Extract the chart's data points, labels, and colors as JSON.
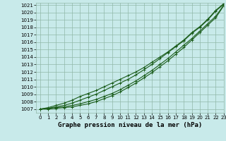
{
  "title": "Graphe pression niveau de la mer (hPa)",
  "xlim": [
    -0.5,
    23
  ],
  "ylim": [
    1006.5,
    1021.3
  ],
  "yticks": [
    1007,
    1008,
    1009,
    1010,
    1011,
    1012,
    1013,
    1014,
    1015,
    1016,
    1017,
    1018,
    1019,
    1020,
    1021
  ],
  "xticks": [
    0,
    1,
    2,
    3,
    4,
    5,
    6,
    7,
    8,
    9,
    10,
    11,
    12,
    13,
    14,
    15,
    16,
    17,
    18,
    19,
    20,
    21,
    22,
    23
  ],
  "background_color": "#c8eaea",
  "grid_color": "#90b8a8",
  "line_color": "#1a5c1a",
  "lines": [
    [
      1007.0,
      1007.1,
      1007.2,
      1007.3,
      1007.5,
      1007.7,
      1008.0,
      1008.3,
      1008.7,
      1009.1,
      1009.6,
      1010.2,
      1010.8,
      1011.5,
      1012.2,
      1013.0,
      1013.8,
      1014.7,
      1015.6,
      1016.5,
      1017.5,
      1018.5,
      1019.5,
      1021.0
    ],
    [
      1007.0,
      1007.0,
      1007.1,
      1007.2,
      1007.3,
      1007.5,
      1007.7,
      1008.0,
      1008.4,
      1008.8,
      1009.3,
      1009.9,
      1010.5,
      1011.2,
      1011.9,
      1012.7,
      1013.5,
      1014.4,
      1015.3,
      1016.3,
      1017.3,
      1018.3,
      1019.3,
      1020.9
    ],
    [
      1007.0,
      1007.1,
      1007.3,
      1007.5,
      1007.8,
      1008.2,
      1008.6,
      1009.0,
      1009.5,
      1010.0,
      1010.5,
      1011.0,
      1011.6,
      1012.3,
      1013.0,
      1013.8,
      1014.6,
      1015.4,
      1016.2,
      1017.2,
      1018.0,
      1019.0,
      1020.2,
      1021.1
    ],
    [
      1007.0,
      1007.2,
      1007.5,
      1007.8,
      1008.2,
      1008.7,
      1009.1,
      1009.5,
      1010.0,
      1010.5,
      1011.0,
      1011.5,
      1012.0,
      1012.6,
      1013.3,
      1014.0,
      1014.7,
      1015.5,
      1016.3,
      1017.3,
      1018.1,
      1019.1,
      1020.3,
      1021.2
    ]
  ],
  "marker": "+",
  "markersize": 3.5,
  "linewidth": 0.8,
  "title_fontsize": 6.5,
  "tick_fontsize": 5.0,
  "ylabel_fontsize": 5.0
}
